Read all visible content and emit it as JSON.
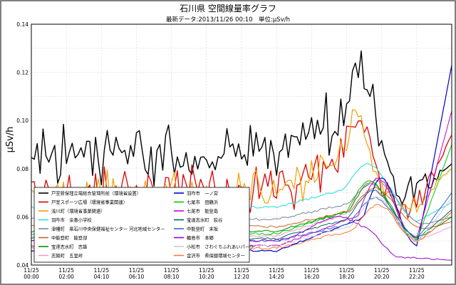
{
  "chart_data": {
    "type": "line",
    "title": "石川県 空間線量率グラフ",
    "subtitle": "最新データ:2013/11/26 00:10　単位:μSv/h",
    "ylabel": "μSv/h",
    "ylim": [
      0.04,
      0.14
    ],
    "yticks": [
      "0.04",
      "0.06",
      "0.08",
      "0.10",
      "0.12",
      "0.14"
    ],
    "xlim": [
      0,
      24
    ],
    "xticks": [
      {
        "date": "11/25",
        "time": "00:00"
      },
      {
        "date": "11/25",
        "time": "02:00"
      },
      {
        "date": "11/25",
        "time": "04:10"
      },
      {
        "date": "11/25",
        "time": "06:10"
      },
      {
        "date": "11/25",
        "time": "08:10"
      },
      {
        "date": "11/25",
        "time": "10:20"
      },
      {
        "date": "11/25",
        "time": "12:20"
      },
      {
        "date": "11/25",
        "time": "14:20"
      },
      {
        "date": "11/25",
        "time": "16:20"
      },
      {
        "date": "11/25",
        "time": "18:20"
      },
      {
        "date": "11/25",
        "time": "20:20"
      },
      {
        "date": "11/25",
        "time": "22:20"
      }
    ],
    "grid": true,
    "legend_position": "bottom-left",
    "series": [
      {
        "name": "戸室新保埋立場総合管理所前（環境省設置）",
        "color": "#000000",
        "width": 1.4,
        "base": 0.088,
        "amp": 0.007,
        "noise": 0.006,
        "peak": 0.033,
        "pc": 18.7,
        "pw": 1.0,
        "post": 0.071,
        "end": 0.082
      },
      {
        "name": "戸室スポーツ広場（環境省事業関連）",
        "color": "#e00000",
        "width": 1.3,
        "base": 0.072,
        "amp": 0.007,
        "noise": 0.005,
        "peak": 0.03,
        "pc": 18.6,
        "pw": 1.0,
        "post": 0.064,
        "end": 0.094
      },
      {
        "name": "浅川町（環境省事業関連）",
        "color": "#f0a000",
        "width": 1.2,
        "base": 0.071,
        "amp": 0.005,
        "noise": 0.004,
        "peak": 0.032,
        "pc": 18.6,
        "pw": 1.0,
        "post": 0.066,
        "end": 0.08
      },
      {
        "name": "羽咋市　余喜小学校",
        "color": "#33dddd",
        "width": 1.1,
        "base": 0.064,
        "amp": 0.0,
        "noise": 0.0005,
        "peak": 0.018,
        "pc": 19.2,
        "pw": 1.4,
        "post": 0.058,
        "end": 0.066
      },
      {
        "name": "津幡町　県石川中央保健福祉センター 河北地域センター",
        "color": "#778899",
        "width": 1.0,
        "base": 0.059,
        "amp": 0.0,
        "noise": 0.0005,
        "peak": 0.016,
        "pc": 19.6,
        "pw": 1.5,
        "post": 0.056,
        "end": 0.06
      },
      {
        "name": "中能登町　能登部",
        "color": "#c86428",
        "width": 1.0,
        "base": 0.056,
        "amp": 0.0,
        "noise": 0.0005,
        "peak": 0.016,
        "pc": 19.6,
        "pw": 1.5,
        "post": 0.054,
        "end": 0.058
      },
      {
        "name": "宝達志水町　志雄",
        "color": "#009000",
        "width": 1.0,
        "base": 0.054,
        "amp": 0.0,
        "noise": 0.0005,
        "peak": 0.02,
        "pc": 19.4,
        "pw": 1.4,
        "post": 0.05,
        "end": 0.06
      },
      {
        "name": "志賀町　五里峠",
        "color": "#ff99cc",
        "width": 1.0,
        "base": 0.052,
        "amp": 0.0,
        "noise": 0.0005,
        "peak": 0.022,
        "pc": 19.3,
        "pw": 1.4,
        "post": 0.05,
        "end": 0.056
      },
      {
        "name": "羽咋市　一ノ宮",
        "color": "#0000cc",
        "width": 1.2,
        "base": 0.046,
        "amp": 0.0,
        "noise": 0.0004,
        "peak": 0.03,
        "pc": 20.0,
        "pw": 1.2,
        "post": 0.046,
        "end": 0.123
      },
      {
        "name": "七尾市　田鶴浜",
        "color": "#00cc00",
        "width": 1.0,
        "base": 0.053,
        "amp": 0.0,
        "noise": 0.0005,
        "peak": 0.022,
        "pc": 19.3,
        "pw": 1.4,
        "post": 0.05,
        "end": 0.09
      },
      {
        "name": "七尾市　能登島",
        "color": "#cc00cc",
        "width": 1.0,
        "base": 0.048,
        "amp": 0.0,
        "noise": 0.0005,
        "peak": 0.028,
        "pc": 19.8,
        "pw": 1.3,
        "post": 0.05,
        "end": 0.104
      },
      {
        "name": "宝達志水町　荻谷",
        "color": "#006666",
        "width": 1.0,
        "base": 0.051,
        "amp": 0.0,
        "noise": 0.0005,
        "peak": 0.02,
        "pc": 19.5,
        "pw": 1.5,
        "post": 0.05,
        "end": 0.063
      },
      {
        "name": "中能登町　末坂",
        "color": "#3366cc",
        "width": 1.0,
        "base": 0.05,
        "amp": 0.0,
        "noise": 0.0005,
        "peak": 0.018,
        "pc": 19.6,
        "pw": 1.5,
        "post": 0.05,
        "end": 0.07
      },
      {
        "name": "輪島市　本郷",
        "color": "#9900cc",
        "width": 1.0,
        "base": 0.05,
        "amp": 0.0,
        "noise": 0.0005,
        "peak": 0.01,
        "pc": 17.5,
        "pw": 2.0,
        "post": 0.043,
        "end": 0.042
      },
      {
        "name": "小松市　さわぐちふれあいパーク",
        "color": "#cccccc",
        "width": 1.0,
        "base": 0.048,
        "amp": 0.0,
        "noise": 0.0005,
        "peak": 0.02,
        "pc": 19.7,
        "pw": 1.5,
        "post": 0.048,
        "end": 0.068
      },
      {
        "name": "金沢市　県保健環境センター",
        "color": "#ff7733",
        "width": 1.0,
        "base": 0.047,
        "amp": 0.0,
        "noise": 0.0005,
        "peak": 0.018,
        "pc": 19.8,
        "pw": 1.5,
        "post": 0.048,
        "end": 0.062
      }
    ]
  }
}
